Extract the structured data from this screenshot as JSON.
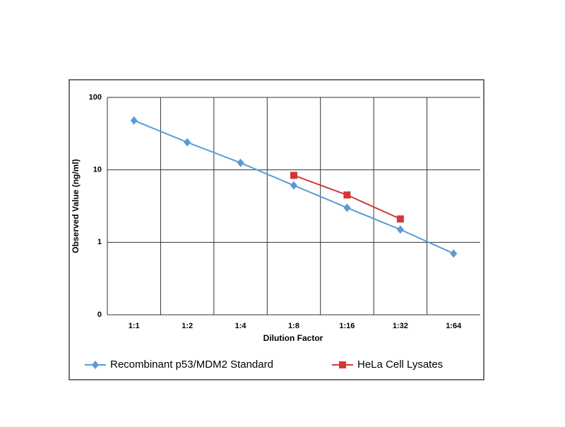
{
  "chart_data": {
    "type": "line",
    "x_label": "Dilution Factor",
    "y_label": "Observed Value (ng/ml)",
    "categories": [
      "1:1",
      "1:2",
      "1:4",
      "1:8",
      "1:16",
      "1:32",
      "1:64"
    ],
    "series": [
      {
        "name": "Recombinant p53/MDM2 Standard",
        "color": "#5b9bd5",
        "marker": "diamond",
        "values": [
          48,
          24,
          12.5,
          6.1,
          3.0,
          1.5,
          0.7
        ]
      },
      {
        "name": "HeLa Cell Lysates",
        "color": "#d03838",
        "marker": "square",
        "values": [
          null,
          null,
          null,
          8.4,
          4.5,
          2.1,
          null
        ]
      }
    ],
    "log_scale": true,
    "ylim": [
      0.1,
      100
    ],
    "yticks": [
      {
        "value": 0.1,
        "label": "0"
      },
      1,
      10,
      100
    ],
    "grid": true,
    "legend": "bottom"
  }
}
